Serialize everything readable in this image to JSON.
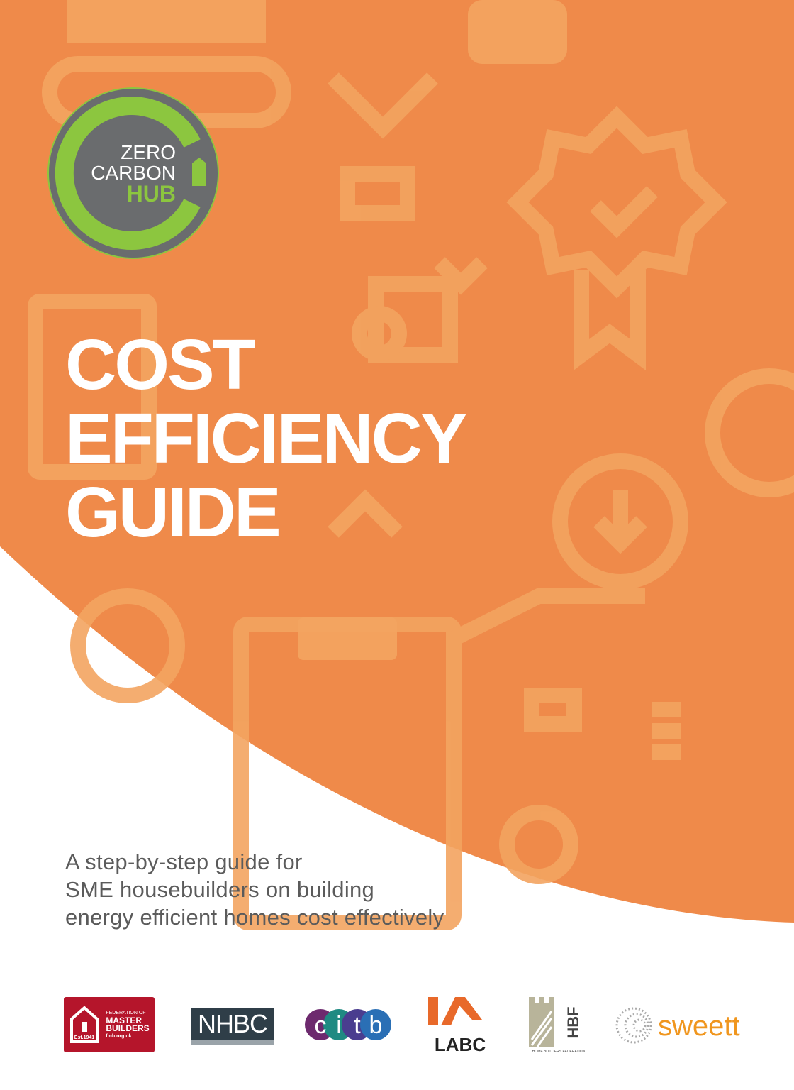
{
  "cover": {
    "title_lines": [
      "COST",
      "EFFICIENCY",
      "GUIDE"
    ],
    "subtitle_lines": [
      "A step-by-step guide for",
      "SME housebuilders on building",
      "energy efficient homes cost effectively"
    ],
    "colors": {
      "background": "#EF8A4A",
      "decor": "#F3A460",
      "title": "#FFFFFF",
      "subtitle": "#5B5B5B"
    }
  },
  "brand_logo": {
    "line1": "ZERO",
    "line2": "CARBON",
    "line3": "HUB"
  },
  "partner_logos": {
    "fmb": {
      "line1": "FEDERATION OF",
      "line2": "MASTER",
      "line3": "BUILDERS",
      "est": "Est.1941",
      "url": "fmb.org.uk"
    },
    "nhbc": "NHBC",
    "citb": [
      "c",
      "i",
      "t",
      "b"
    ],
    "labc": "LABC",
    "hbf": {
      "short": "HBF",
      "full": "HOME BUILDERS FEDERATION"
    },
    "sweett": "sweett"
  }
}
